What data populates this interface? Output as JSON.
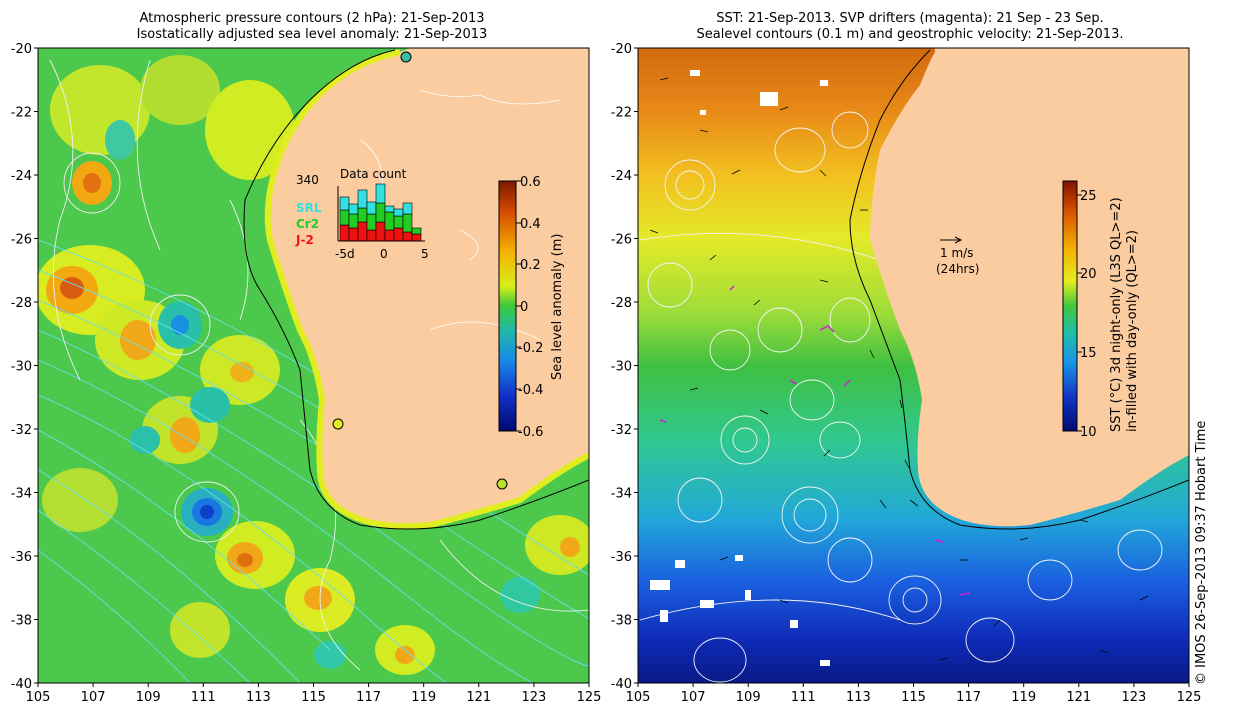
{
  "left_panel": {
    "title_line1": "Atmospheric pressure contours (2 hPa): 21-Sep-2013",
    "title_line2": "Isostatically adjusted sea level anomaly: 21-Sep-2013",
    "colorbar_label": "Sea level anomaly (m)",
    "colorbar_ticks": [
      "0.6",
      "0.4",
      "0.2",
      "0",
      "-0.2",
      "-0.4",
      "-0.6"
    ],
    "inset": {
      "title": "Data count",
      "max_label": "340",
      "legend": [
        {
          "label": "SRL",
          "color": "#33e0e0"
        },
        {
          "label": "Cr2",
          "color": "#22cc22"
        },
        {
          "label": "J-2",
          "color": "#ee1111"
        }
      ],
      "axis_ticks": [
        "-5d",
        "0",
        "5"
      ]
    }
  },
  "right_panel": {
    "title_line1": "SST: 21-Sep-2013. SVP drifters (magenta): 21 Sep - 23 Sep.",
    "title_line2": "Sealevel contours (0.1 m) and geostrophic velocity: 21-Sep-2013.",
    "scale_label": "1 m/s",
    "scale_sub": "(24hrs)",
    "colorbar_label_line1": "SST (°C) 3d night-only (L3S QL>=2)",
    "colorbar_label_line2": "in-filled with day-only (QL>=2)",
    "colorbar_ticks": [
      "25",
      "20",
      "15",
      "10"
    ]
  },
  "x_ticks": [
    "105",
    "107",
    "109",
    "111",
    "113",
    "115",
    "117",
    "119",
    "121",
    "123",
    "125"
  ],
  "y_ticks": [
    "-20",
    "-22",
    "-24",
    "-26",
    "-28",
    "-30",
    "-32",
    "-34",
    "-36",
    "-38",
    "-40"
  ],
  "credit": "© IMOS 26-Sep-2013 09:37 Hobart Time",
  "colors": {
    "land": "#fbcca0",
    "ocean_sla": "#4cc84c",
    "contour": "#e6e6e6",
    "pressure": "#66e0ee"
  }
}
